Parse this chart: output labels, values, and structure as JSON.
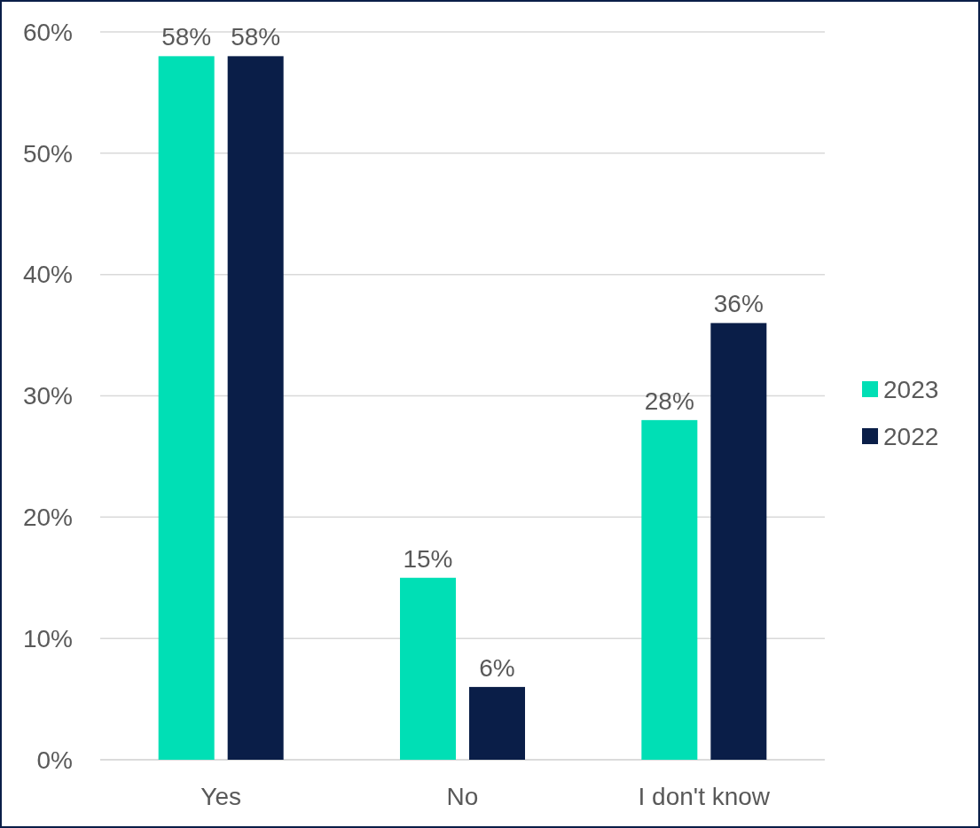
{
  "chart_data": {
    "type": "bar",
    "categories": [
      "Yes",
      "No",
      "I don't know"
    ],
    "series": [
      {
        "name": "2023",
        "color": "#00dfb5",
        "values": [
          58,
          15,
          28
        ],
        "value_labels": [
          "58%",
          "15%",
          "28%"
        ]
      },
      {
        "name": "2022",
        "color": "#0a1e48",
        "values": [
          58,
          6,
          36
        ],
        "value_labels": [
          "58%",
          "6%",
          "36%"
        ]
      }
    ],
    "ylim": [
      0,
      60
    ],
    "yticks": [
      {
        "value": 0,
        "label": "0%"
      },
      {
        "value": 10,
        "label": "10%"
      },
      {
        "value": 20,
        "label": "20%"
      },
      {
        "value": 30,
        "label": "30%"
      },
      {
        "value": 40,
        "label": "40%"
      },
      {
        "value": 50,
        "label": "50%"
      },
      {
        "value": 60,
        "label": "60%"
      }
    ],
    "grid": "y",
    "legend": "right"
  }
}
